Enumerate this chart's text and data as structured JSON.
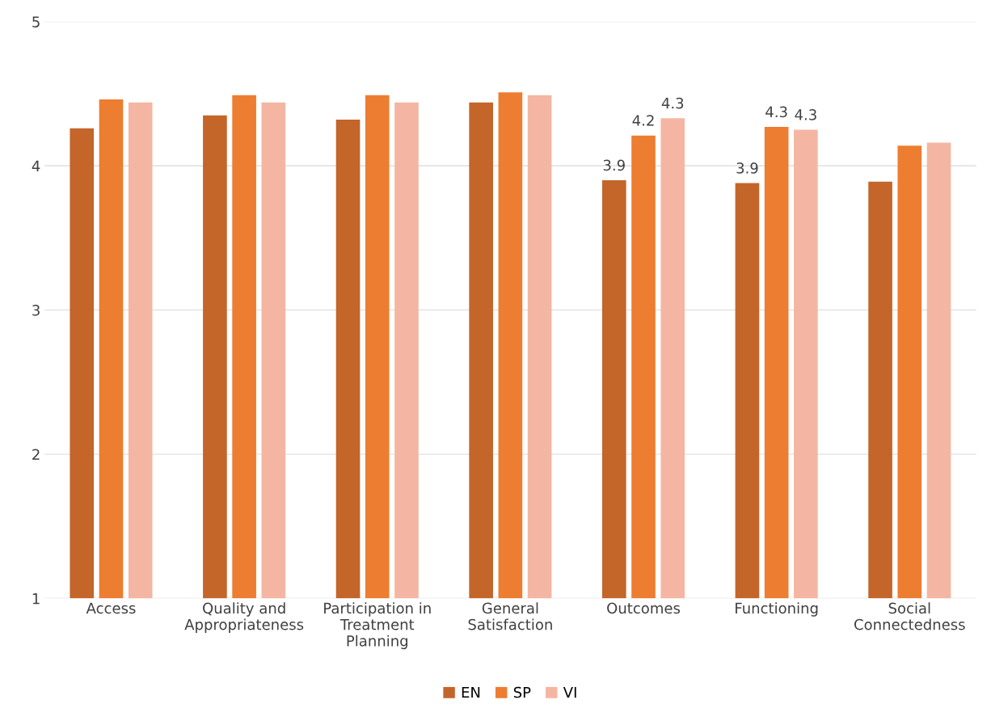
{
  "chart_data": {
    "type": "bar",
    "categories": [
      "Access",
      "Quality and\nAppropriateness",
      "Participation in\nTreatment\nPlanning",
      "General\nSatisfaction",
      "Outcomes",
      "Functioning",
      "Social\nConnectedness"
    ],
    "series": [
      {
        "name": "EN",
        "color": "#c4652a",
        "values": [
          4.26,
          4.35,
          4.32,
          4.44,
          3.9,
          3.88,
          3.89
        ],
        "value_labels": [
          null,
          null,
          null,
          null,
          "3.9",
          "3.9",
          null
        ]
      },
      {
        "name": "SP",
        "color": "#ed7d31",
        "values": [
          4.46,
          4.49,
          4.49,
          4.51,
          4.21,
          4.27,
          4.14
        ],
        "value_labels": [
          null,
          null,
          null,
          null,
          "4.2",
          "4.3",
          null
        ]
      },
      {
        "name": "VI",
        "color": "#f4b6a2",
        "values": [
          4.44,
          4.44,
          4.44,
          4.49,
          4.33,
          4.25,
          4.16
        ],
        "value_labels": [
          null,
          null,
          null,
          null,
          "4.3",
          "4.3",
          null
        ]
      }
    ],
    "ylim": [
      1,
      5
    ],
    "yticks": [
      1,
      2,
      3,
      4,
      5
    ],
    "grid": "y",
    "legend": "bottom"
  }
}
